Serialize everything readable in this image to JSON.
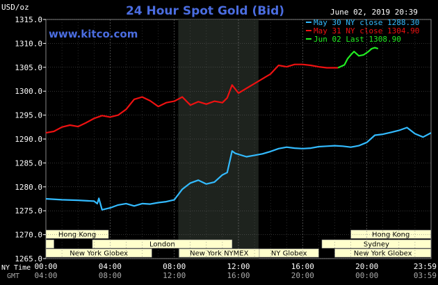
{
  "chart_data": {
    "type": "line",
    "title": "24 Hour Spot Gold (Bid)",
    "website": "www.kitco.com",
    "y_unit_label": "USD/oz",
    "date_label": "June 02, 2019 20:39",
    "ylim": [
      1265.0,
      1315.0
    ],
    "y_ticks": [
      "1265.0",
      "1270.0",
      "1275.0",
      "1280.0",
      "1285.0",
      "1290.0",
      "1295.0",
      "1300.0",
      "1305.0",
      "1310.0",
      "1315.0"
    ],
    "y_tick_values": [
      1265,
      1270,
      1275,
      1280,
      1285,
      1290,
      1295,
      1300,
      1305,
      1310,
      1315
    ],
    "xlim": [
      0,
      24
    ],
    "x_row_labels": {
      "ny": "NY Time",
      "gmt": "GMT"
    },
    "x_ticks": [
      {
        "ny": "00:00",
        "gmt": "04:00",
        "hour": 0
      },
      {
        "ny": "04:00",
        "gmt": "08:00",
        "hour": 4
      },
      {
        "ny": "08:00",
        "gmt": "12:00",
        "hour": 8
      },
      {
        "ny": "12:00",
        "gmt": "16:00",
        "hour": 12
      },
      {
        "ny": "16:00",
        "gmt": "20:00",
        "hour": 16
      },
      {
        "ny": "20:00",
        "gmt": "00:00",
        "hour": 20
      },
      {
        "ny": "23:59",
        "gmt": "03:59",
        "hour": 24
      }
    ],
    "grid": true,
    "highlight_band": [
      8.25,
      13.25
    ],
    "legend_position": "top-right",
    "series": [
      {
        "name": "May 30 NY close 1288.30",
        "color": "#33bbff",
        "x": [
          0,
          1,
          2,
          3,
          3.2,
          3.3,
          3.5,
          4,
          4.5,
          5,
          5.5,
          6,
          6.5,
          7,
          7.5,
          8,
          8.5,
          9,
          9.5,
          10,
          10.5,
          11,
          11.3,
          11.6,
          11.8,
          12,
          12.5,
          13,
          13.5,
          14,
          14.5,
          15,
          15.5,
          16,
          16.5,
          17,
          17.5,
          18,
          18.5,
          19,
          19.5,
          20,
          20.5,
          21,
          21.5,
          22,
          22.5,
          23,
          23.5,
          24
        ],
        "y": [
          1277.5,
          1277.3,
          1277.2,
          1277.0,
          1276.5,
          1277.6,
          1275.2,
          1275.6,
          1276.2,
          1276.5,
          1276.0,
          1276.5,
          1276.4,
          1276.7,
          1276.9,
          1277.3,
          1279.5,
          1280.8,
          1281.4,
          1280.6,
          1281.0,
          1282.5,
          1283.0,
          1287.5,
          1287.0,
          1286.8,
          1286.3,
          1286.6,
          1286.9,
          1287.4,
          1288.0,
          1288.3,
          1288.1,
          1288.0,
          1288.1,
          1288.4,
          1288.5,
          1288.6,
          1288.5,
          1288.3,
          1288.6,
          1289.3,
          1290.8,
          1291.0,
          1291.4,
          1291.8,
          1292.4,
          1291.1,
          1290.4,
          1291.3
        ]
      },
      {
        "name": "May 31 NY close 1304.90",
        "color": "#ee1111",
        "x": [
          0,
          0.5,
          1,
          1.5,
          2,
          2.5,
          3,
          3.5,
          4,
          4.5,
          5,
          5.5,
          6,
          6.5,
          7,
          7.5,
          8,
          8.5,
          9,
          9.5,
          10,
          10.5,
          11,
          11.3,
          11.6,
          12,
          12.5,
          13,
          13.5,
          14,
          14.5,
          15,
          15.5,
          16,
          16.5,
          17,
          17.5,
          18,
          18.2
        ],
        "y": [
          1291.3,
          1291.6,
          1292.5,
          1292.9,
          1292.6,
          1293.4,
          1294.3,
          1294.9,
          1294.6,
          1295.0,
          1296.2,
          1298.3,
          1298.8,
          1298.0,
          1296.8,
          1297.6,
          1297.9,
          1298.8,
          1297.1,
          1297.8,
          1297.3,
          1297.9,
          1297.6,
          1298.6,
          1301.3,
          1299.6,
          1300.6,
          1301.6,
          1302.6,
          1303.6,
          1305.4,
          1305.1,
          1305.6,
          1305.6,
          1305.4,
          1305.1,
          1304.9,
          1304.9,
          1304.9
        ]
      },
      {
        "name": "Jun 02 Last 1308.90",
        "color": "#22ee22",
        "x": [
          18.2,
          18.6,
          18.8,
          19.0,
          19.2,
          19.5,
          19.8,
          20.1,
          20.3,
          20.5,
          20.7
        ],
        "y": [
          1304.9,
          1305.5,
          1306.8,
          1307.6,
          1308.3,
          1307.4,
          1307.6,
          1308.3,
          1308.9,
          1309.1,
          1308.9
        ]
      }
    ],
    "sessions": [
      {
        "label": "Hong Kong",
        "start": 0,
        "end": 3.9,
        "row": 0
      },
      {
        "label": "Hong Kong",
        "start": 19.0,
        "end": 23.99,
        "row": 0
      },
      {
        "label": "London",
        "start": 0,
        "end": 0.5,
        "row": 1
      },
      {
        "label": "London",
        "start": 2.9,
        "end": 11.6,
        "row": 1
      },
      {
        "label": "Sydney",
        "start": 17.2,
        "end": 23.99,
        "row": 1
      },
      {
        "label": "New York Globex",
        "start": 0,
        "end": 6.6,
        "row": 2
      },
      {
        "label": "New York NYMEX",
        "start": 8.3,
        "end": 13.3,
        "row": 2
      },
      {
        "label": "NY Globex",
        "start": 13.3,
        "end": 17.0,
        "row": 2
      },
      {
        "label": "New York Globex",
        "start": 18.0,
        "end": 23.99,
        "row": 2
      }
    ]
  }
}
